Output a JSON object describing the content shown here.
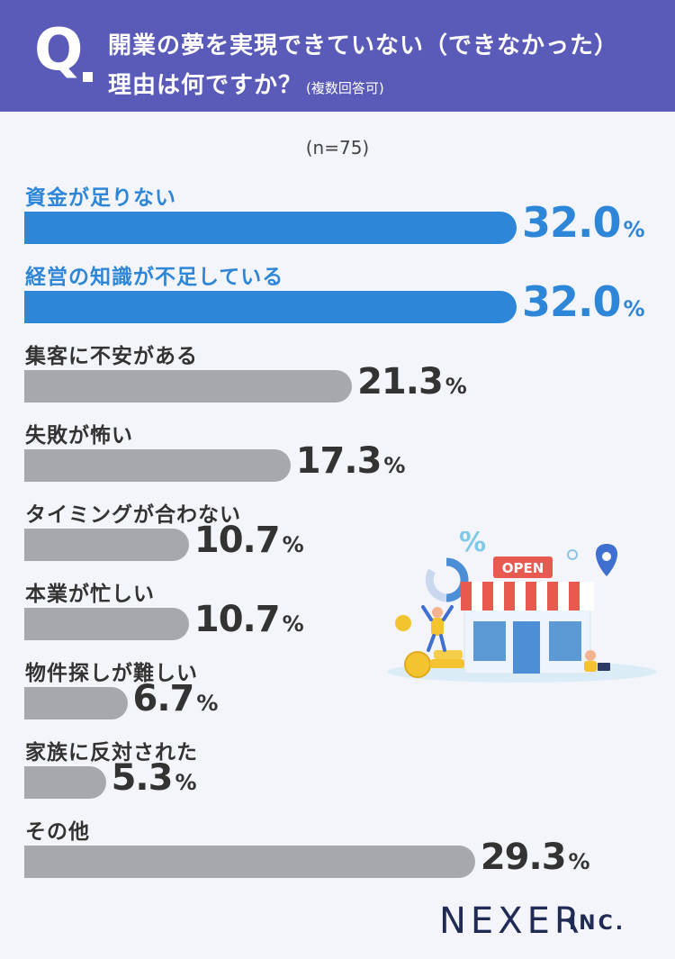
{
  "header": {
    "q_mark": "Q",
    "question_line1": "開業の夢を実現できていない（できなかった）",
    "question_line2": "理由は何ですか？",
    "question_note": "(複数回答可)"
  },
  "sample": "(n=75)",
  "chart_data": {
    "type": "bar",
    "orientation": "horizontal",
    "categories": [
      "資金が足りない",
      "経営の知識が不足している",
      "集客に不安がある",
      "失敗が怖い",
      "タイミングが合わない",
      "本業が忙しい",
      "物件探しが難しい",
      "家族に反対された",
      "その他"
    ],
    "values": [
      32.0,
      32.0,
      21.3,
      17.3,
      10.7,
      10.7,
      6.7,
      5.3,
      29.3
    ],
    "value_labels": [
      "32.0",
      "32.0",
      "21.3",
      "17.3",
      "10.7",
      "10.7",
      "6.7",
      "5.3",
      "29.3"
    ],
    "unit": "%",
    "highlight": [
      true,
      true,
      false,
      false,
      false,
      false,
      false,
      false,
      false
    ],
    "colors": {
      "highlight": "#2d86d8",
      "default": "#a7a8ad",
      "header": "#5a5ab8"
    },
    "grid": false,
    "legend": false
  },
  "illustration": {
    "sign_text": "OPEN",
    "percent_symbol": "%"
  },
  "brand": {
    "name": "NEXER",
    "suffix": "INC."
  }
}
